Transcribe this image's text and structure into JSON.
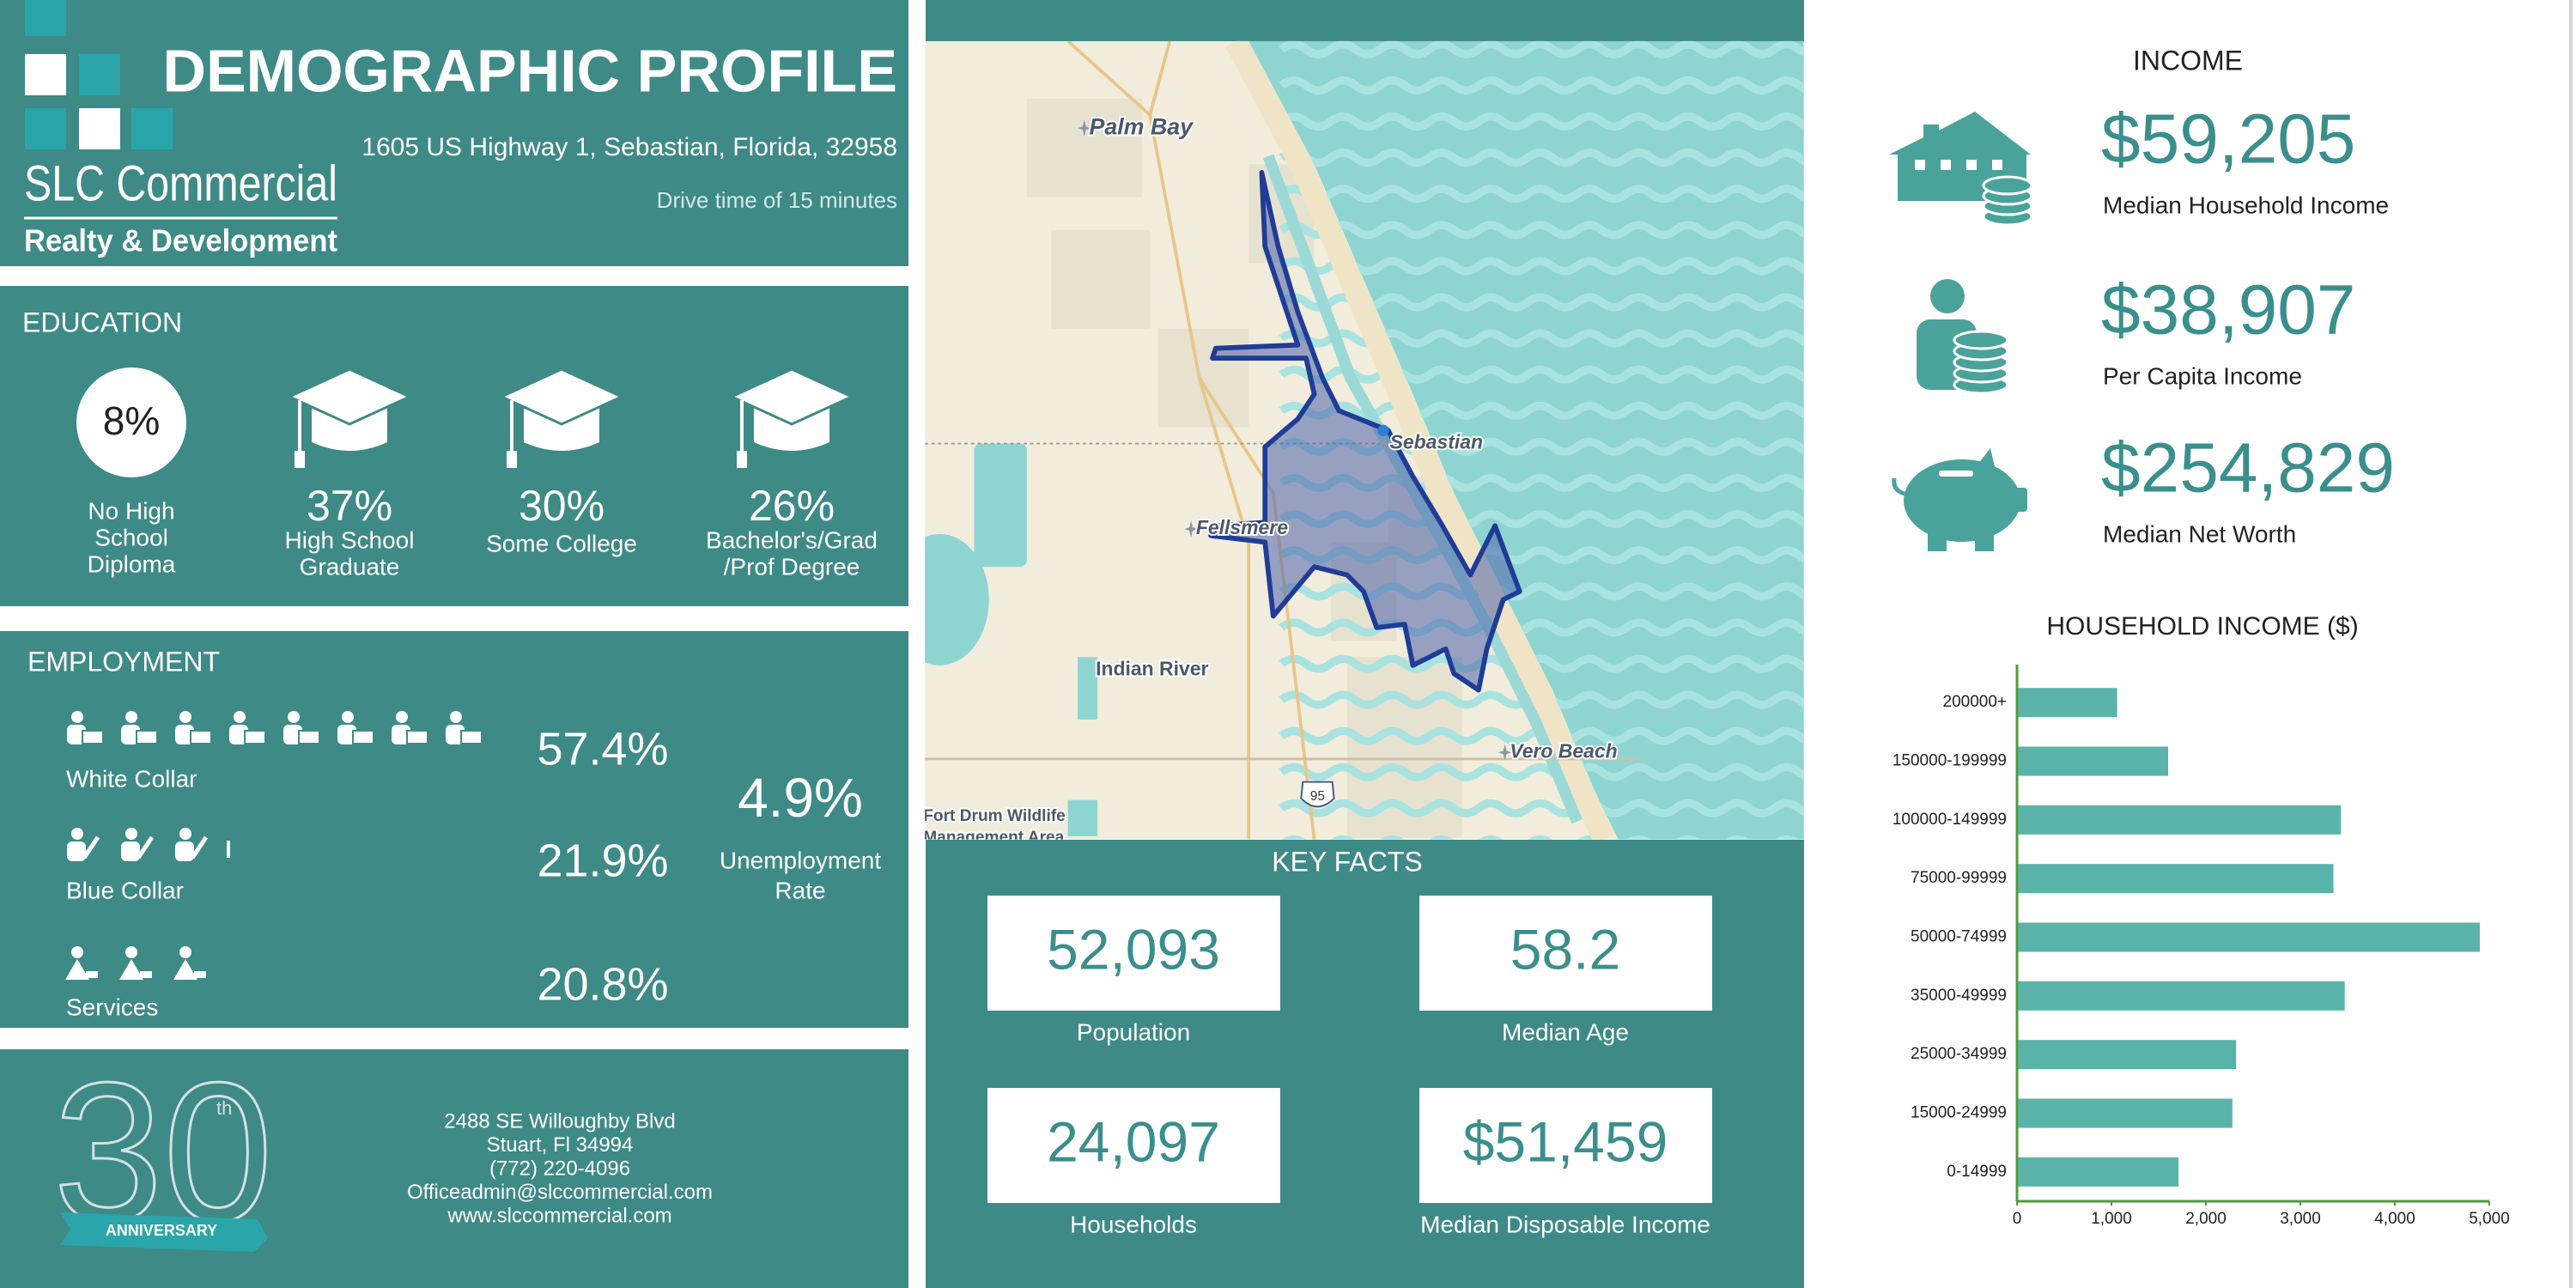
{
  "header": {
    "title": "DEMOGRAPHIC PROFILE",
    "address": "1605 US Highway 1, Sebastian, Florida, 32958",
    "drive_time": "Drive time of 15 minutes",
    "logo_name": "SLC Commercial",
    "logo_tagline": "Realty & Development"
  },
  "education": {
    "title": "EDUCATION",
    "items": [
      {
        "value": "8%",
        "label": [
          "No High",
          "School",
          "Diploma"
        ]
      },
      {
        "value": "37%",
        "label": [
          "High School",
          "Graduate"
        ]
      },
      {
        "value": "30%",
        "label": [
          "Some College"
        ]
      },
      {
        "value": "26%",
        "label": [
          "Bachelor's/Grad",
          "/Prof Degree"
        ]
      }
    ]
  },
  "employment": {
    "title": "EMPLOYMENT",
    "rows": [
      {
        "label": "White Collar",
        "value": "57.4%"
      },
      {
        "label": "Blue Collar",
        "value": "21.9%"
      },
      {
        "label": "Services",
        "value": "20.8%"
      }
    ],
    "unemployment": {
      "value": "4.9%",
      "label": [
        "Unemployment",
        "Rate"
      ]
    }
  },
  "footer": {
    "anniversary": {
      "number": "30",
      "suffix": "th",
      "banner": "ANNIVERSARY"
    },
    "contact": [
      "2488 SE Willoughby Blvd",
      "Stuart, Fl 34994",
      "(772) 220-4096",
      "Officeadmin@slccommercial.com",
      "www.slccommercial.com"
    ]
  },
  "map": {
    "labels": [
      "Palm Bay",
      "Sebastian",
      "Fellsmere",
      "Indian River",
      "Vero Beach",
      "Fort Drum Wildlife",
      "Management Area"
    ],
    "highway": "95"
  },
  "key_facts": {
    "title": "KEY FACTS",
    "items": [
      {
        "value": "52,093",
        "label": "Population"
      },
      {
        "value": "58.2",
        "label": "Median Age"
      },
      {
        "value": "24,097",
        "label": "Households"
      },
      {
        "value": "$51,459",
        "label": "Median Disposable Income"
      }
    ]
  },
  "income": {
    "title": "INCOME",
    "items": [
      {
        "value": "$59,205",
        "label": "Median Household Income"
      },
      {
        "value": "$38,907",
        "label": "Per Capita Income"
      },
      {
        "value": "$254,829",
        "label": "Median Net Worth"
      }
    ]
  },
  "chart_data": {
    "type": "bar",
    "horizontal": true,
    "title": "HOUSEHOLD INCOME ($)",
    "categories": [
      "200000+",
      "150000-199999",
      "100000-149999",
      "75000-99999",
      "50000-74999",
      "35000-49999",
      "25000-34999",
      "15000-24999",
      "0-14999"
    ],
    "values": [
      1060,
      1600,
      3430,
      3350,
      4900,
      3470,
      2320,
      2280,
      1710
    ],
    "color": "#5ab3a9",
    "axis_color": "#4f9a3c",
    "xlim": [
      0,
      5000
    ],
    "xticks": [
      0,
      {
        "value": 1000,
        "label": "1,000"
      },
      {
        "value": 2000,
        "label": "2,000"
      },
      {
        "value": 3000,
        "label": "3,000"
      },
      {
        "value": 4000,
        "label": "4,000"
      },
      {
        "value": 5000,
        "label": "5,000"
      }
    ]
  }
}
